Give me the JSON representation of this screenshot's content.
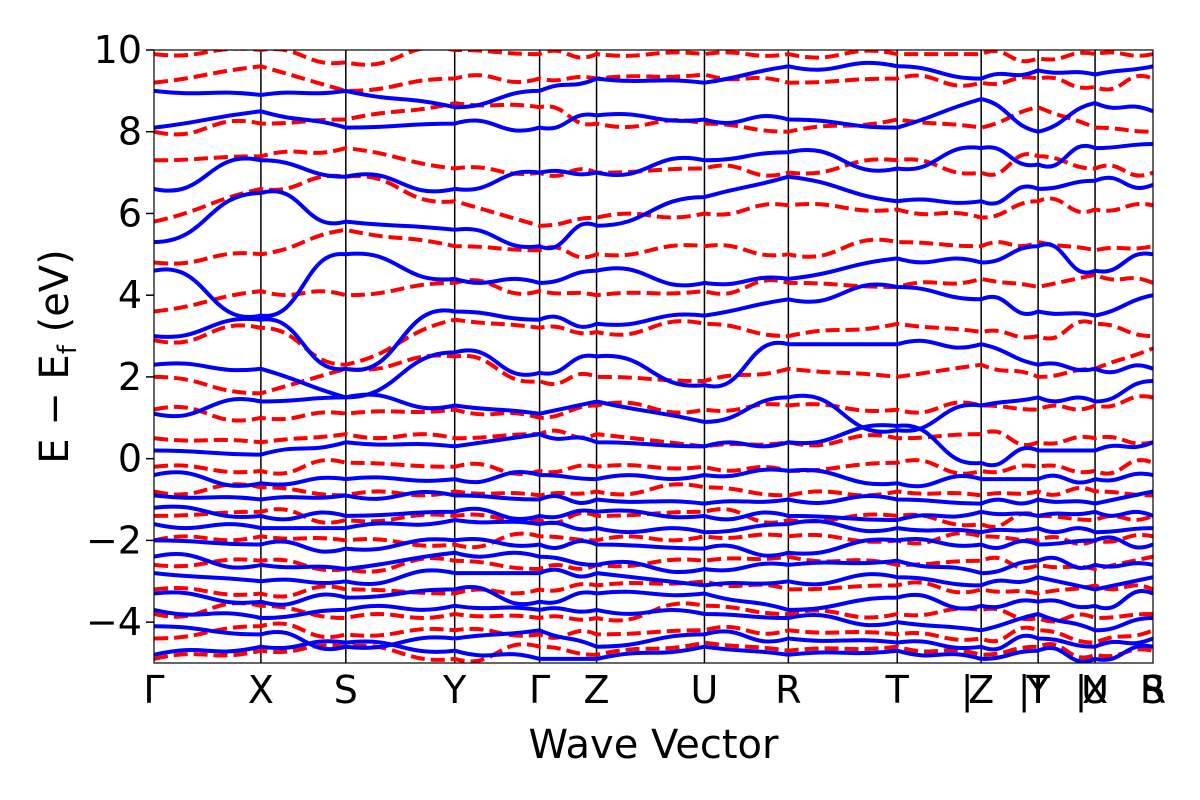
{
  "chart_data": {
    "type": "line",
    "title": "",
    "xlabel": "Wave Vector",
    "ylabel": "E − E",
    "ylabel_sub": "f",
    "ylabel_unit": " (eV)",
    "ylim": [
      -5,
      10
    ],
    "yticks": [
      {
        "value": -4,
        "label": "−4"
      },
      {
        "value": -2,
        "label": "−2"
      },
      {
        "value": 0,
        "label": "0"
      },
      {
        "value": 2,
        "label": "2"
      },
      {
        "value": 4,
        "label": "4"
      },
      {
        "value": 6,
        "label": "6"
      },
      {
        "value": 8,
        "label": "8"
      },
      {
        "value": 10,
        "label": "10"
      }
    ],
    "xlim": [
      0,
      1
    ],
    "kpoints": [
      {
        "label": "Γ",
        "x": 0.0
      },
      {
        "label": "X",
        "x": 0.107
      },
      {
        "label": "S",
        "x": 0.192
      },
      {
        "label": "Y",
        "x": 0.301
      },
      {
        "label": "Γ",
        "x": 0.386
      },
      {
        "label": "Z",
        "x": 0.443
      },
      {
        "label": "U",
        "x": 0.551
      },
      {
        "label": "R",
        "x": 0.635
      },
      {
        "label": "T",
        "x": 0.744
      },
      {
        "label": "Z",
        "x": 0.828
      },
      {
        "label": "|",
        "x": 0.828
      },
      {
        "label": "Y",
        "x": 0.885
      },
      {
        "label": "T",
        "x": 0.885
      },
      {
        "label": "|",
        "x": 0.885
      },
      {
        "label": "U",
        "x": 0.942
      },
      {
        "label": "X",
        "x": 0.942
      },
      {
        "label": "|",
        "x": 0.942
      },
      {
        "label": "S",
        "x": 1.0
      },
      {
        "label": "R",
        "x": 1.0
      }
    ],
    "series": [
      {
        "style": "solid",
        "color": "#0000ff",
        "band_energies_at_kpoints_approx": [
          [
            -4.8,
            -4.6,
            -4.5,
            -4.7,
            -4.9,
            -4.9,
            -4.6,
            -4.8,
            -4.7,
            -4.9,
            -4.7,
            -4.9,
            -4.6
          ],
          [
            -4.1,
            -4.3,
            -4.6,
            -4.4,
            -4.2,
            -4.6,
            -4.3,
            -4.4,
            -4.5,
            -4.6,
            -4.4,
            -4.6,
            -4.4
          ],
          [
            -3.7,
            -3.9,
            -3.7,
            -3.6,
            -3.7,
            -3.7,
            -3.8,
            -3.9,
            -4.0,
            -4.2,
            -3.8,
            -4.2,
            -3.9
          ],
          [
            -3.3,
            -3.5,
            -3.4,
            -3.2,
            -3.5,
            -3.3,
            -3.3,
            -3.7,
            -3.4,
            -3.6,
            -3.5,
            -3.6,
            -3.3
          ],
          [
            -2.8,
            -3.0,
            -3.0,
            -2.8,
            -2.8,
            -2.8,
            -3.1,
            -3.0,
            -2.9,
            -3.1,
            -2.9,
            -3.2,
            -2.9
          ],
          [
            -2.4,
            -2.6,
            -2.7,
            -2.3,
            -2.4,
            -2.6,
            -2.7,
            -2.6,
            -2.5,
            -2.8,
            -2.5,
            -2.6,
            -2.6
          ],
          [
            -2.0,
            -2.1,
            -2.2,
            -2.0,
            -2.1,
            -2.1,
            -2.2,
            -2.3,
            -2.0,
            -2.1,
            -2.1,
            -2.0,
            -2.1
          ],
          [
            -1.6,
            -1.7,
            -1.7,
            -1.5,
            -1.6,
            -1.7,
            -1.8,
            -1.6,
            -1.7,
            -1.8,
            -1.7,
            -1.8,
            -1.7
          ],
          [
            -1.2,
            -1.4,
            -1.4,
            -1.3,
            -1.4,
            -1.3,
            -1.4,
            -1.4,
            -1.5,
            -1.3,
            -1.4,
            -1.3,
            -1.4
          ],
          [
            -0.9,
            -1.0,
            -0.9,
            -0.9,
            -1.0,
            -1.0,
            -1.1,
            -1.0,
            -1.0,
            -1.1,
            -1.0,
            -1.1,
            -0.8
          ],
          [
            -0.4,
            -0.6,
            -0.5,
            -0.5,
            -0.4,
            -0.5,
            -0.4,
            -0.3,
            -0.6,
            -0.5,
            -0.5,
            -0.5,
            -0.4
          ],
          [
            0.2,
            0.1,
            0.4,
            0.3,
            0.6,
            0.4,
            0.3,
            0.4,
            0.8,
            -0.1,
            0.2,
            0.2,
            0.4
          ],
          [
            1.1,
            1.4,
            1.5,
            1.3,
            1.1,
            1.4,
            0.9,
            1.5,
            0.7,
            1.3,
            1.5,
            1.4,
            1.9
          ],
          [
            2.3,
            2.2,
            1.5,
            2.6,
            2.1,
            2.5,
            1.8,
            2.8,
            2.8,
            2.8,
            2.3,
            2.2,
            2.2
          ],
          [
            3.0,
            3.4,
            2.2,
            3.6,
            3.4,
            3.3,
            3.5,
            3.9,
            4.2,
            3.9,
            3.6,
            3.5,
            4.0
          ],
          [
            4.6,
            3.5,
            5.0,
            4.4,
            4.3,
            4.6,
            4.3,
            4.4,
            4.9,
            4.8,
            5.2,
            4.6,
            5.0
          ],
          [
            5.3,
            6.5,
            5.8,
            5.6,
            5.2,
            5.7,
            6.4,
            6.9,
            6.3,
            6.3,
            6.6,
            6.8,
            6.7
          ],
          [
            6.6,
            7.3,
            6.9,
            6.6,
            7.0,
            7.0,
            7.3,
            7.5,
            7.1,
            7.6,
            7.2,
            7.6,
            7.7
          ],
          [
            8.1,
            8.5,
            8.1,
            8.2,
            8.1,
            8.4,
            8.3,
            8.3,
            8.1,
            8.8,
            8.0,
            8.7,
            8.5
          ],
          [
            9.0,
            8.9,
            9.0,
            8.6,
            9.0,
            9.3,
            9.2,
            9.6,
            9.6,
            9.3,
            9.5,
            9.4,
            9.6
          ]
        ]
      },
      {
        "style": "dashed",
        "color": "#ff0000",
        "band_energies_at_kpoints_approx": [
          [
            -4.9,
            -4.7,
            -4.6,
            -4.9,
            -4.6,
            -4.8,
            -4.5,
            -4.7,
            -4.6,
            -4.8,
            -4.6,
            -4.8,
            -4.7
          ],
          [
            -4.4,
            -4.1,
            -4.3,
            -4.2,
            -4.3,
            -4.3,
            -4.2,
            -4.2,
            -4.3,
            -4.4,
            -4.2,
            -4.5,
            -4.2
          ],
          [
            -3.8,
            -3.6,
            -3.9,
            -3.8,
            -3.9,
            -3.9,
            -3.6,
            -3.8,
            -3.8,
            -3.7,
            -3.9,
            -3.9,
            -3.8
          ],
          [
            -3.2,
            -3.3,
            -3.2,
            -3.3,
            -3.2,
            -3.1,
            -3.0,
            -3.2,
            -3.1,
            -3.2,
            -3.3,
            -3.1,
            -3.2
          ],
          [
            -2.6,
            -2.5,
            -2.7,
            -2.5,
            -2.7,
            -2.6,
            -2.5,
            -2.4,
            -2.6,
            -2.5,
            -2.6,
            -2.7,
            -2.4
          ],
          [
            -2.0,
            -1.9,
            -2.0,
            -2.1,
            -1.9,
            -2.0,
            -1.9,
            -1.9,
            -2.0,
            -1.9,
            -2.0,
            -2.0,
            -1.9
          ],
          [
            -1.4,
            -1.3,
            -1.5,
            -1.4,
            -1.5,
            -1.4,
            -1.3,
            -1.5,
            -1.4,
            -1.6,
            -1.4,
            -1.5,
            -1.4
          ],
          [
            -0.8,
            -0.7,
            -0.9,
            -0.8,
            -0.9,
            -0.8,
            -0.7,
            -0.9,
            -0.8,
            -0.9,
            -0.8,
            -0.8,
            -0.9
          ],
          [
            -0.2,
            -0.3,
            -0.1,
            -0.2,
            -0.3,
            -0.2,
            -0.2,
            -0.3,
            -0.1,
            -0.3,
            -0.2,
            -0.3,
            -0.1
          ],
          [
            0.5,
            0.4,
            0.6,
            0.5,
            0.6,
            0.6,
            0.3,
            0.4,
            0.5,
            0.6,
            0.4,
            0.5,
            0.4
          ],
          [
            1.2,
            1.0,
            1.1,
            1.2,
            1.0,
            1.3,
            1.2,
            1.3,
            1.2,
            1.3,
            1.2,
            1.3,
            1.5
          ],
          [
            2.0,
            1.6,
            2.2,
            2.5,
            1.9,
            2.0,
            1.9,
            2.2,
            2.0,
            2.3,
            2.0,
            2.2,
            2.7
          ],
          [
            2.9,
            3.2,
            2.3,
            3.4,
            3.2,
            3.1,
            3.3,
            3.0,
            3.3,
            3.1,
            3.0,
            3.3,
            3.0
          ],
          [
            3.6,
            4.1,
            4.0,
            4.3,
            4.1,
            4.0,
            4.1,
            4.3,
            4.2,
            4.4,
            4.2,
            4.5,
            4.3
          ],
          [
            4.8,
            5.0,
            5.6,
            5.2,
            5.1,
            5.0,
            5.2,
            5.0,
            5.3,
            5.2,
            5.3,
            5.1,
            5.2
          ],
          [
            5.8,
            6.6,
            6.9,
            6.3,
            5.7,
            5.9,
            6.0,
            6.2,
            6.1,
            5.9,
            6.3,
            6.1,
            6.2
          ],
          [
            7.3,
            7.4,
            7.6,
            7.1,
            7.0,
            7.0,
            7.1,
            7.0,
            7.3,
            7.0,
            7.4,
            7.1,
            7.0
          ],
          [
            8.0,
            8.2,
            8.3,
            8.7,
            8.6,
            8.2,
            8.2,
            8.0,
            8.3,
            8.1,
            8.6,
            8.1,
            8.0
          ],
          [
            9.2,
            9.6,
            9.0,
            9.3,
            9.3,
            9.3,
            9.4,
            9.2,
            9.3,
            9.2,
            9.3,
            9.1,
            9.3
          ],
          [
            9.9,
            10.0,
            9.7,
            10.0,
            9.9,
            9.9,
            9.9,
            9.9,
            9.9,
            9.9,
            9.8,
            9.9,
            9.9
          ]
        ]
      }
    ]
  }
}
